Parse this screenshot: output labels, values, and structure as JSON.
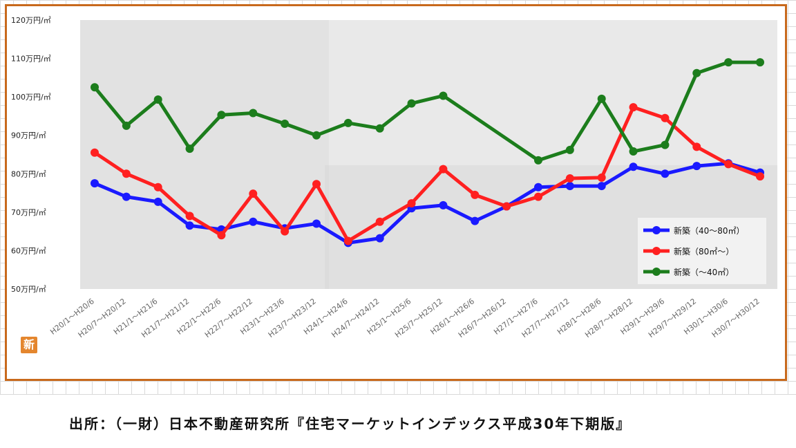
{
  "source": {
    "text": "出所：（一財）日本不動産研究所『住宅マーケットインデックス平成30年下期版』"
  },
  "badge": {
    "text": "新"
  },
  "colors": {
    "frame": "#c8691c",
    "plot_bg": "#e9e9e9",
    "series": [
      "#1a1aff",
      "#ff2020",
      "#1c7d1c"
    ]
  },
  "chart_data": {
    "type": "line",
    "title": "",
    "xlabel": "",
    "ylabel": "",
    "ylim": [
      50,
      120
    ],
    "yticks": [
      120,
      110,
      100,
      90,
      80,
      70,
      60,
      50
    ],
    "ytick_labels": [
      "120万円/㎡",
      "110万円/㎡",
      "100万円/㎡",
      "90万円/㎡",
      "80万円/㎡",
      "70万円/㎡",
      "60万円/㎡",
      "50万円/㎡"
    ],
    "grid": false,
    "legend_position": "bottom-right",
    "categories": [
      "H20/1～H20/6",
      "H20/7～H20/12",
      "H21/1～H21/6",
      "H21/7～H21/12",
      "H22/1～H22/6",
      "H22/7～H22/12",
      "H23/1～H23/6",
      "H23/7～H23/12",
      "H24/1～H24/6",
      "H24/7～H24/12",
      "H25/1～H25/6",
      "H25/7～H25/12",
      "H26/1～H26/6",
      "H26/7～H26/12",
      "H27/1～H27/6",
      "H27/7～H27/12",
      "H28/1～H28/6",
      "H28/7～H28/12",
      "H29/1～H29/6",
      "H29/7～H29/12",
      "H30/1～H30/6",
      "H30/7～H30/12"
    ],
    "series": [
      {
        "name": "新築（40～80㎡）",
        "color": "#1a1aff",
        "values": [
          77.5,
          74,
          72.7,
          66.5,
          65.5,
          67.5,
          65.8,
          67,
          62,
          63.2,
          71,
          71.8,
          67.7,
          71.5,
          76.5,
          76.8,
          76.8,
          81.8,
          80,
          82,
          82.7,
          80.3
        ]
      },
      {
        "name": "新築（80㎡～）",
        "color": "#ff2020",
        "values": [
          85.5,
          80,
          76.5,
          69,
          64,
          74.8,
          65,
          77.3,
          62.5,
          67.5,
          72.3,
          81.2,
          74.5,
          71.5,
          74,
          78.8,
          79,
          97.3,
          94.5,
          87,
          82.5,
          79.3
        ]
      },
      {
        "name": "新築（～40㎡）",
        "color": "#1c7d1c",
        "values": [
          102.5,
          92.5,
          99.3,
          86.5,
          95.3,
          95.8,
          93,
          90,
          93.2,
          91.8,
          98.3,
          100.3,
          null,
          null,
          83.5,
          86.2,
          99.5,
          85.8,
          87.5,
          106.2,
          109,
          109
        ]
      }
    ]
  }
}
